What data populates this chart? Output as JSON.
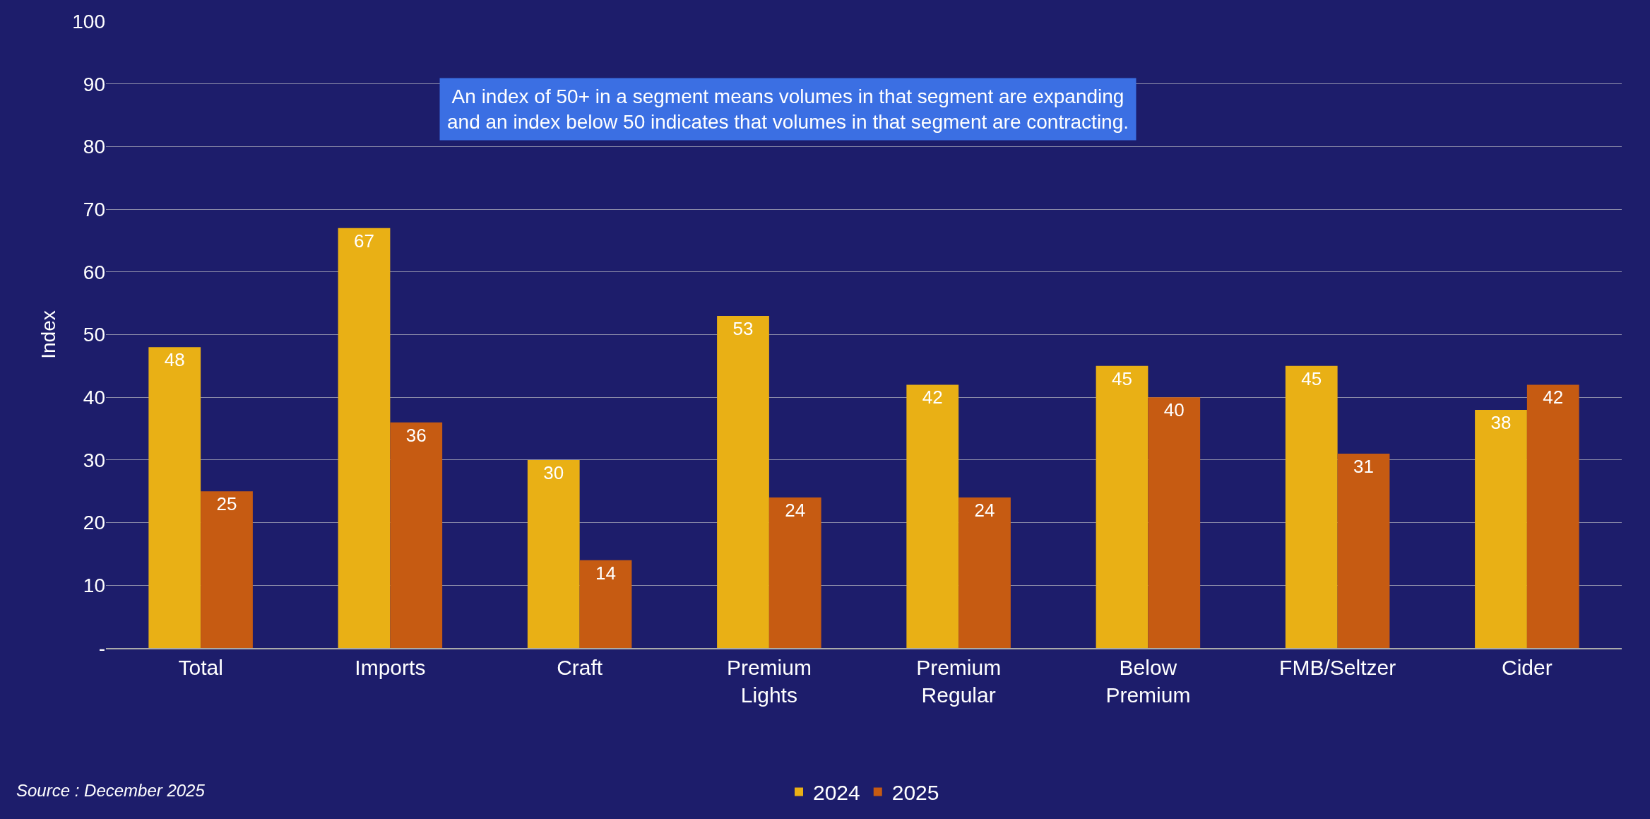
{
  "chart_data": {
    "type": "bar",
    "ylabel": "Index",
    "categories": [
      "Total",
      "Imports",
      "Craft",
      "Premium Lights",
      "Premium Regular",
      "Below Premium",
      "FMB/Seltzer",
      "Cider"
    ],
    "series": [
      {
        "name": "2024",
        "color": "#e9b015",
        "values": [
          48,
          67,
          30,
          53,
          42,
          45,
          45,
          38
        ]
      },
      {
        "name": "2025",
        "color": "#c65b12",
        "values": [
          25,
          36,
          14,
          24,
          24,
          40,
          31,
          42
        ]
      }
    ],
    "ylim": [
      0,
      100
    ],
    "yticks": [
      {
        "value": 0,
        "label": "-"
      },
      10,
      20,
      30,
      40,
      50,
      60,
      70,
      80,
      90,
      100
    ],
    "grid": "y",
    "legend": "bottom",
    "data_labels": true,
    "annotations": [
      "An index of 50+ in a segment means volumes in that segment are expanding and an index below 50 indicates that volumes in that segment are contracting.",
      "Source : December 2025"
    ]
  }
}
